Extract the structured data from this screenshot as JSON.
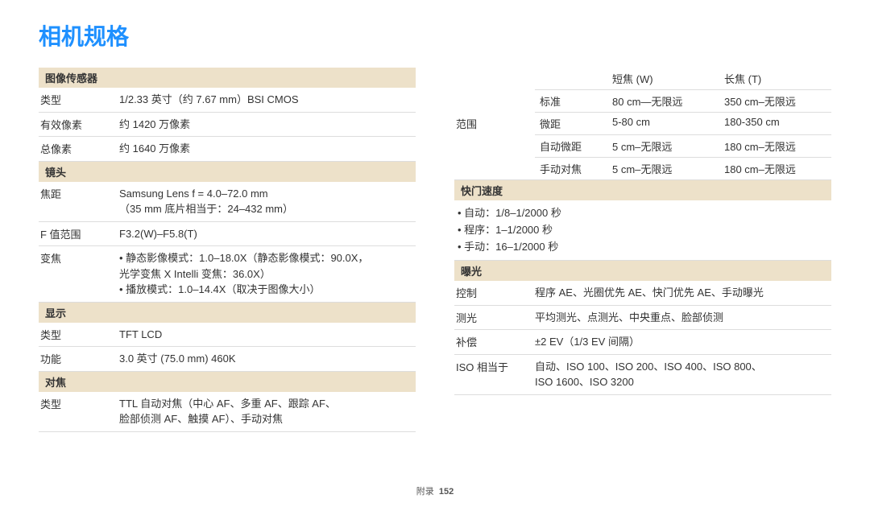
{
  "title": "相机规格",
  "footer": {
    "label": "附录",
    "page": "152"
  },
  "left": {
    "sections": [
      {
        "header": "图像传感器",
        "rows": [
          {
            "label": "类型",
            "value": "1/2.33 英寸（约 7.67 mm）BSI CMOS"
          },
          {
            "label": "有效像素",
            "value": "约 1420 万像素"
          },
          {
            "label": "总像素",
            "value": "约 1640 万像素"
          }
        ]
      },
      {
        "header": "镜头",
        "rows": [
          {
            "label": "焦距",
            "value": "Samsung Lens f = 4.0–72.0 mm\n（35 mm 底片相当于：24–432 mm）"
          },
          {
            "label": "F 值范围",
            "value": "F3.2(W)–F5.8(T)"
          },
          {
            "label": "变焦",
            "value": "• 静态影像模式：1.0–18.0X（静态影像模式：90.0X，\n  光学变焦 X Intelli 变焦：36.0X）\n• 播放模式：1.0–14.4X（取决于图像大小）"
          }
        ]
      },
      {
        "header": "显示",
        "rows": [
          {
            "label": "类型",
            "value": "TFT LCD"
          },
          {
            "label": "功能",
            "value": "3.0 英寸 (75.0 mm) 460K"
          }
        ]
      },
      {
        "header": "对焦",
        "rows": [
          {
            "label": "类型",
            "value": "TTL 自动对焦（中心 AF、多重 AF、跟踪 AF、\n脸部侦测 AF、触摸 AF）、手动对焦"
          }
        ]
      }
    ]
  },
  "right": {
    "range": {
      "label": "范围",
      "headers": [
        "",
        "短焦 (W)",
        "长焦 (T)"
      ],
      "rows": [
        [
          "标准",
          "80 cm—无限远",
          "350 cm–无限远"
        ],
        [
          "微距",
          "5-80 cm",
          "180-350 cm"
        ],
        [
          "自动微距",
          "5 cm–无限远",
          "180 cm–无限远"
        ],
        [
          "手动对焦",
          "5 cm–无限远",
          "180 cm–无限远"
        ]
      ]
    },
    "shutter": {
      "header": "快门速度",
      "items": [
        "自动：1/8–1/2000 秒",
        "程序：1–1/2000 秒",
        "手动：16–1/2000 秒"
      ]
    },
    "exposure": {
      "header": "曝光",
      "rows": [
        {
          "label": "控制",
          "value": "程序 AE、光圈优先 AE、快门优先 AE、手动曝光"
        },
        {
          "label": "测光",
          "value": "平均测光、点测光、中央重点、脸部侦测"
        },
        {
          "label": "补偿",
          "value": "±2 EV（1/3 EV 间隔）"
        },
        {
          "label": "ISO 相当于",
          "value": "自动、ISO 100、ISO 200、ISO 400、ISO 800、\nISO 1600、ISO 3200"
        }
      ]
    }
  }
}
